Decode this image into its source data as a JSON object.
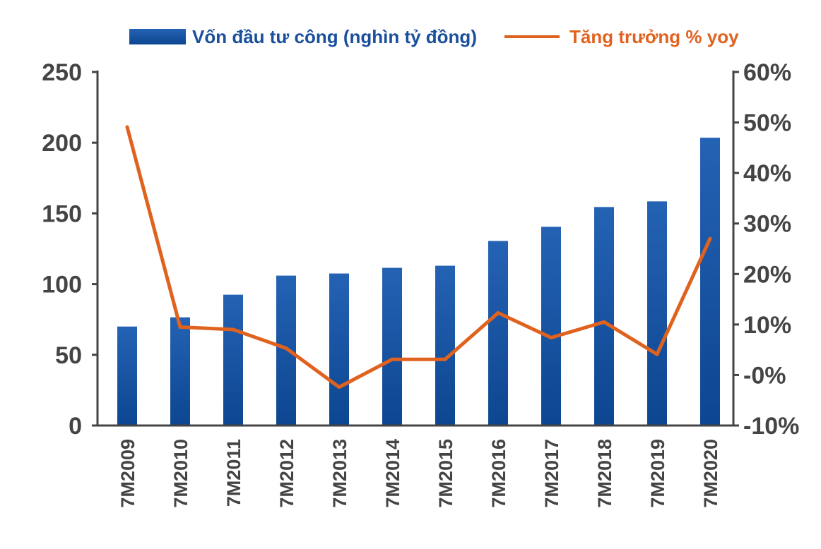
{
  "chart_data": {
    "type": "bar+line",
    "categories": [
      "7M2009",
      "7M2010",
      "7M2011",
      "7M2012",
      "7M2013",
      "7M2014",
      "7M2015",
      "7M2016",
      "7M2017",
      "7M2018",
      "7M2019",
      "7M2020"
    ],
    "series": [
      {
        "name": "Vốn đầu tư công (nghìn tỷ đồng)",
        "type": "bar",
        "axis": "left",
        "color": "#1b57a8",
        "values": [
          70,
          76.5,
          92.5,
          106,
          107.5,
          111.5,
          113,
          130.5,
          140.5,
          154.5,
          158.5,
          203.5
        ]
      },
      {
        "name": "Tăng trưởng % yoy",
        "type": "line",
        "axis": "right",
        "color": "#e0621f",
        "values": [
          49.1,
          9.5,
          9.0,
          5.3,
          -2.4,
          3.1,
          3.1,
          12.3,
          7.4,
          10.5,
          4.1,
          27.0
        ]
      }
    ],
    "left_axis": {
      "ylim": [
        0,
        250
      ],
      "ticks": [
        "0",
        "50",
        "100",
        "150",
        "200",
        "250"
      ]
    },
    "right_axis": {
      "ylim": [
        -10,
        60
      ],
      "ticks": [
        "-10%",
        "-0%",
        "10%",
        "20%",
        "30%",
        "40%",
        "50%",
        "60%"
      ]
    },
    "grid": false,
    "legend": "top",
    "title": "",
    "xlabel": "",
    "ylabel": ""
  }
}
